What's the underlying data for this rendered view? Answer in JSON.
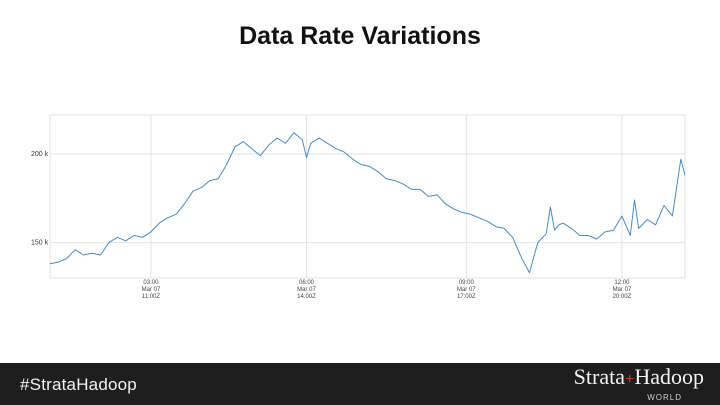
{
  "slide": {
    "title": "Data Rate Variations",
    "hashtag": "#StrataHadoop",
    "brand_left": "Strata",
    "brand_plus": "+",
    "brand_right": "Hadoop",
    "brand_sub": "WORLD"
  },
  "colors": {
    "line": "#4a8bc0",
    "grid": "#e3e3e3",
    "footer_bg": "#1e1e1e",
    "brand_plus": "#d0312d"
  },
  "chart_data": {
    "type": "line",
    "title": "",
    "xlabel": "",
    "ylabel": "",
    "x_unit": "hours",
    "x_range": [
      0.0,
      15.1
    ],
    "y_range": [
      130000,
      222000
    ],
    "y_ticks": [
      {
        "value": 150000,
        "label": "150 k"
      },
      {
        "value": 200000,
        "label": "200 k"
      }
    ],
    "x_ticks": [
      {
        "value": 2.4,
        "lines": [
          "03:00",
          "Mar 07",
          "11:00Z"
        ]
      },
      {
        "value": 6.1,
        "lines": [
          "06:00",
          "Mar 07",
          "14:00Z"
        ]
      },
      {
        "value": 9.9,
        "lines": [
          "09:00",
          "Mar 07",
          "17:00Z"
        ]
      },
      {
        "value": 13.6,
        "lines": [
          "12:00",
          "Mar 07",
          "20:00Z"
        ]
      }
    ],
    "grid": true,
    "legend": "none",
    "series": [
      {
        "x": [
          0.0,
          0.2,
          0.4,
          0.6,
          0.8,
          1.0,
          1.2,
          1.4,
          1.6,
          1.8,
          2.0,
          2.2,
          2.4,
          2.6,
          2.8,
          3.0,
          3.2,
          3.4,
          3.6,
          3.8,
          4.0,
          4.2,
          4.4,
          4.6,
          4.8,
          5.0,
          5.2,
          5.4,
          5.6,
          5.8,
          6.0,
          6.1,
          6.2,
          6.4,
          6.6,
          6.8,
          7.0,
          7.2,
          7.4,
          7.6,
          7.8,
          8.0,
          8.2,
          8.4,
          8.6,
          8.8,
          9.0,
          9.2,
          9.4,
          9.6,
          9.8,
          10.0,
          10.2,
          10.4,
          10.6,
          10.8,
          11.0,
          11.2,
          11.4,
          11.6,
          11.8,
          11.9,
          12.0,
          12.1,
          12.2,
          12.4,
          12.6,
          12.8,
          13.0,
          13.2,
          13.4,
          13.6,
          13.8,
          13.9,
          14.0,
          14.2,
          14.4,
          14.6,
          14.8,
          14.9,
          15.0,
          15.1
        ],
        "y": [
          138000,
          139000,
          141000,
          146000,
          143000,
          144000,
          143000,
          150000,
          153000,
          151000,
          154000,
          153000,
          156000,
          161000,
          164000,
          166000,
          172000,
          179000,
          181000,
          185000,
          186000,
          194000,
          204000,
          207000,
          203000,
          199000,
          205000,
          209000,
          206000,
          212000,
          208000,
          198000,
          206000,
          209000,
          206000,
          203000,
          201000,
          197000,
          194000,
          193000,
          190000,
          186000,
          185000,
          183000,
          180000,
          180000,
          176000,
          177000,
          172000,
          169000,
          167000,
          166000,
          164000,
          162000,
          159000,
          158000,
          153000,
          142000,
          133000,
          150000,
          155000,
          170000,
          157000,
          160000,
          161000,
          158000,
          154000,
          154000,
          152000,
          156000,
          157000,
          165000,
          154000,
          174000,
          158000,
          163000,
          160000,
          171000,
          165000,
          181000,
          197000,
          188000
        ]
      }
    ]
  }
}
